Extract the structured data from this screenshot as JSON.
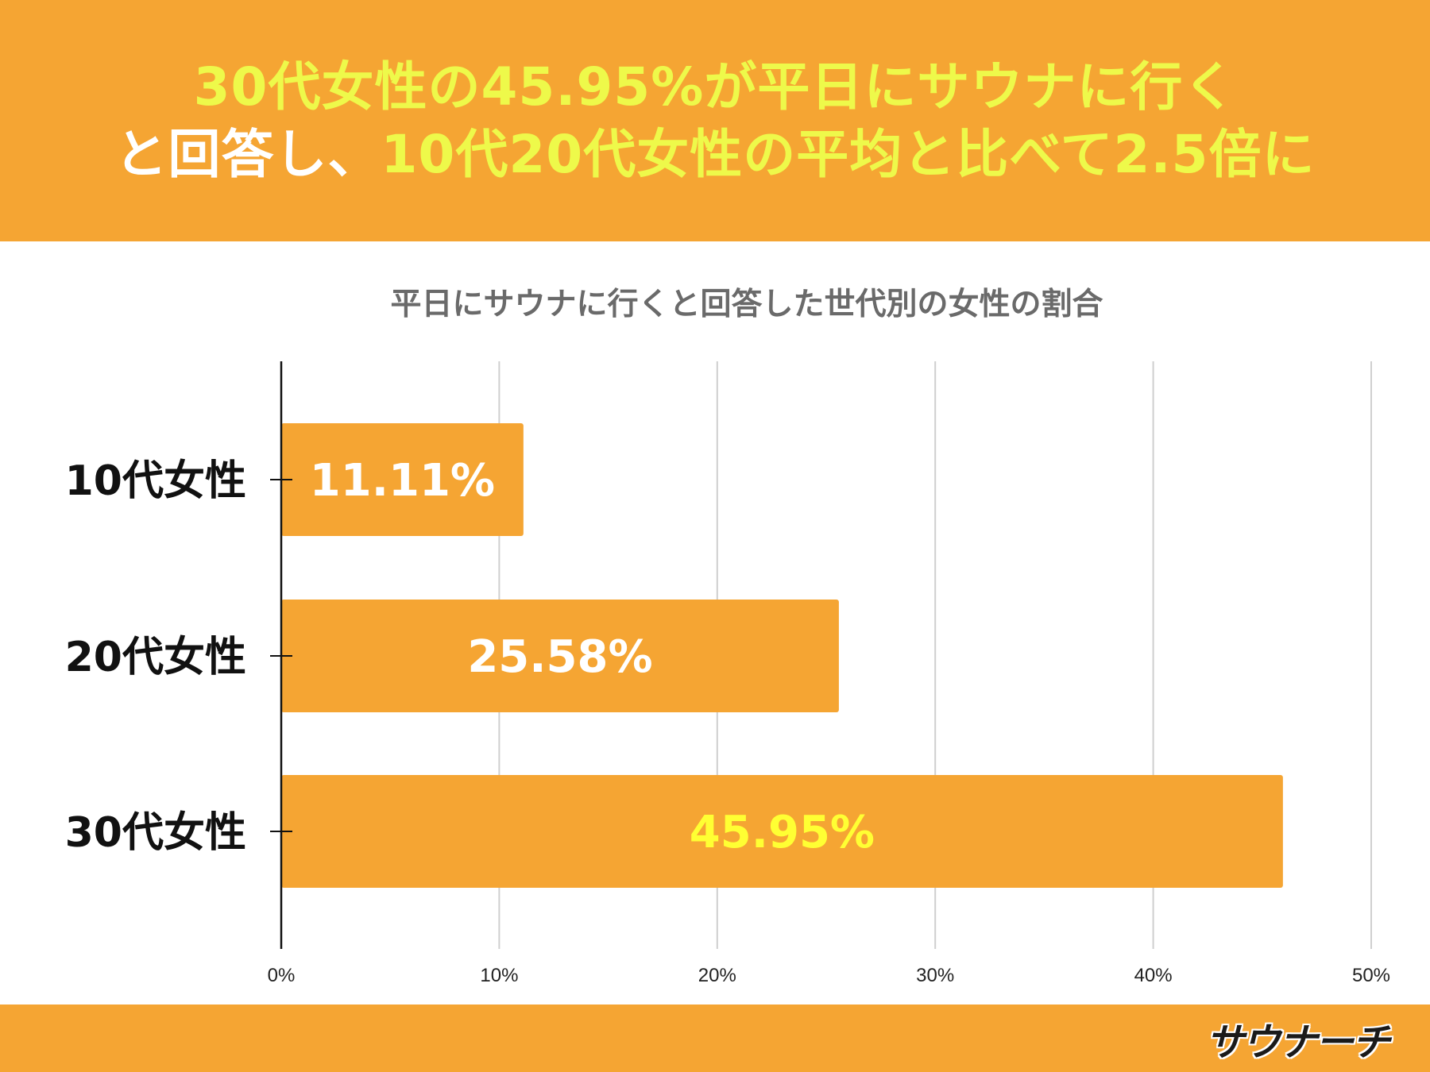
{
  "header": {
    "line1": "30代女性の45.95%が平日にサウナに行く",
    "line2_white": "と回答し、",
    "line2_yellow": "10代20代女性の平均と比べて2.5倍に"
  },
  "footer": {
    "logo_text": "サウナーチ"
  },
  "colors": {
    "brand_orange": "#f5a533",
    "headline_yellow": "#eef94a",
    "label_white": "#ffffff",
    "label_yellow": "#ffff33"
  },
  "chart_data": {
    "type": "bar",
    "orientation": "horizontal",
    "title": "平日にサウナに行くと回答した世代別の女性の割合",
    "categories": [
      "10代女性",
      "20代女性",
      "30代女性"
    ],
    "values": [
      11.11,
      25.58,
      45.95
    ],
    "value_labels": [
      "11.11%",
      "25.58%",
      "45.95%"
    ],
    "xlim": [
      0,
      50
    ],
    "xticks": [
      "0%",
      "10%",
      "20%",
      "30%",
      "40%",
      "50%"
    ],
    "xlabel": "",
    "ylabel": "",
    "grid": true,
    "legend": "none"
  }
}
